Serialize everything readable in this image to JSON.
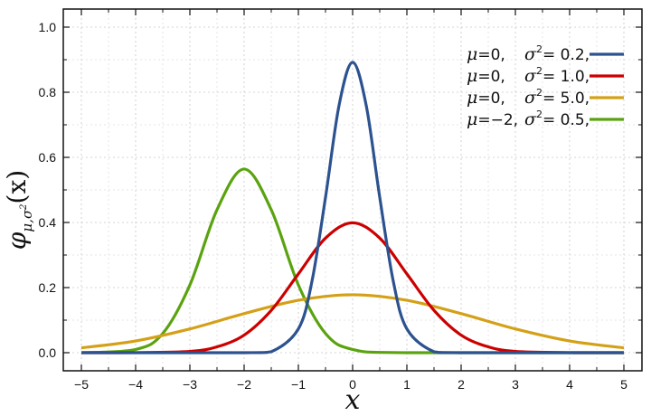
{
  "chart_data": {
    "type": "line",
    "xlabel": "x",
    "ylabel": {
      "symbol": "φ",
      "subscript": "μ,σ",
      "superscript": "2",
      "argument": "(x)"
    },
    "xlim": [
      -5,
      5
    ],
    "ylim": [
      0,
      1.0
    ],
    "x_ticks": [
      -5,
      -4,
      -3,
      -2,
      -1,
      0,
      1,
      2,
      3,
      4,
      5
    ],
    "x_tick_labels": [
      "−5",
      "−4",
      "−3",
      "−2",
      "−1",
      "0",
      "1",
      "2",
      "3",
      "4",
      "5"
    ],
    "y_ticks": [
      0.0,
      0.2,
      0.4,
      0.6,
      0.8,
      1.0
    ],
    "y_tick_labels": [
      "0.0",
      "0.2",
      "0.4",
      "0.6",
      "0.8",
      "1.0"
    ],
    "grid": true,
    "legend_position": "top-right",
    "series": [
      {
        "mu": 0,
        "variance": 0.2,
        "color": "#2c5290",
        "legend": {
          "mu_text": "=0,",
          "sigma_text": "= 0.2,"
        },
        "x": [
          -5,
          -2,
          -1.5,
          -1,
          -0.75,
          -0.5,
          -0.25,
          0,
          0.25,
          0.5,
          0.75,
          1,
          1.5,
          2,
          5
        ],
        "y": [
          0.0,
          0.0,
          0.003,
          0.073,
          0.219,
          0.477,
          0.76,
          0.892,
          0.76,
          0.477,
          0.219,
          0.073,
          0.003,
          0.0,
          0.0
        ]
      },
      {
        "mu": 0,
        "variance": 1.0,
        "color": "#cc0000",
        "legend": {
          "mu_text": "=0,",
          "sigma_text": "= 1.0,"
        },
        "x": [
          -5,
          -4,
          -3,
          -2.5,
          -2,
          -1.5,
          -1,
          -0.5,
          0,
          0.5,
          1,
          1.5,
          2,
          2.5,
          3,
          4,
          5
        ],
        "y": [
          0.0,
          0.0001,
          0.004,
          0.018,
          0.054,
          0.13,
          0.242,
          0.352,
          0.399,
          0.352,
          0.242,
          0.13,
          0.054,
          0.018,
          0.004,
          0.0001,
          0.0
        ]
      },
      {
        "mu": 0,
        "variance": 5.0,
        "color": "#d4a017",
        "legend": {
          "mu_text": "=0,",
          "sigma_text": "= 5.0,"
        },
        "x": [
          -5,
          -4,
          -3,
          -2,
          -1,
          0,
          1,
          2,
          3,
          4,
          5
        ],
        "y": [
          0.015,
          0.036,
          0.073,
          0.12,
          0.161,
          0.178,
          0.161,
          0.12,
          0.073,
          0.036,
          0.015
        ]
      },
      {
        "mu": -2,
        "variance": 0.5,
        "color": "#5aa30f",
        "legend": {
          "mu_text": "=−2,",
          "sigma_text": "= 0.5,"
        },
        "x": [
          -5,
          -4,
          -3.5,
          -3,
          -2.5,
          -2,
          -1.5,
          -1,
          -0.5,
          0,
          1,
          5
        ],
        "y": [
          0.0,
          0.01,
          0.059,
          0.208,
          0.439,
          0.564,
          0.439,
          0.208,
          0.059,
          0.01,
          0.0,
          0.0
        ]
      }
    ]
  }
}
